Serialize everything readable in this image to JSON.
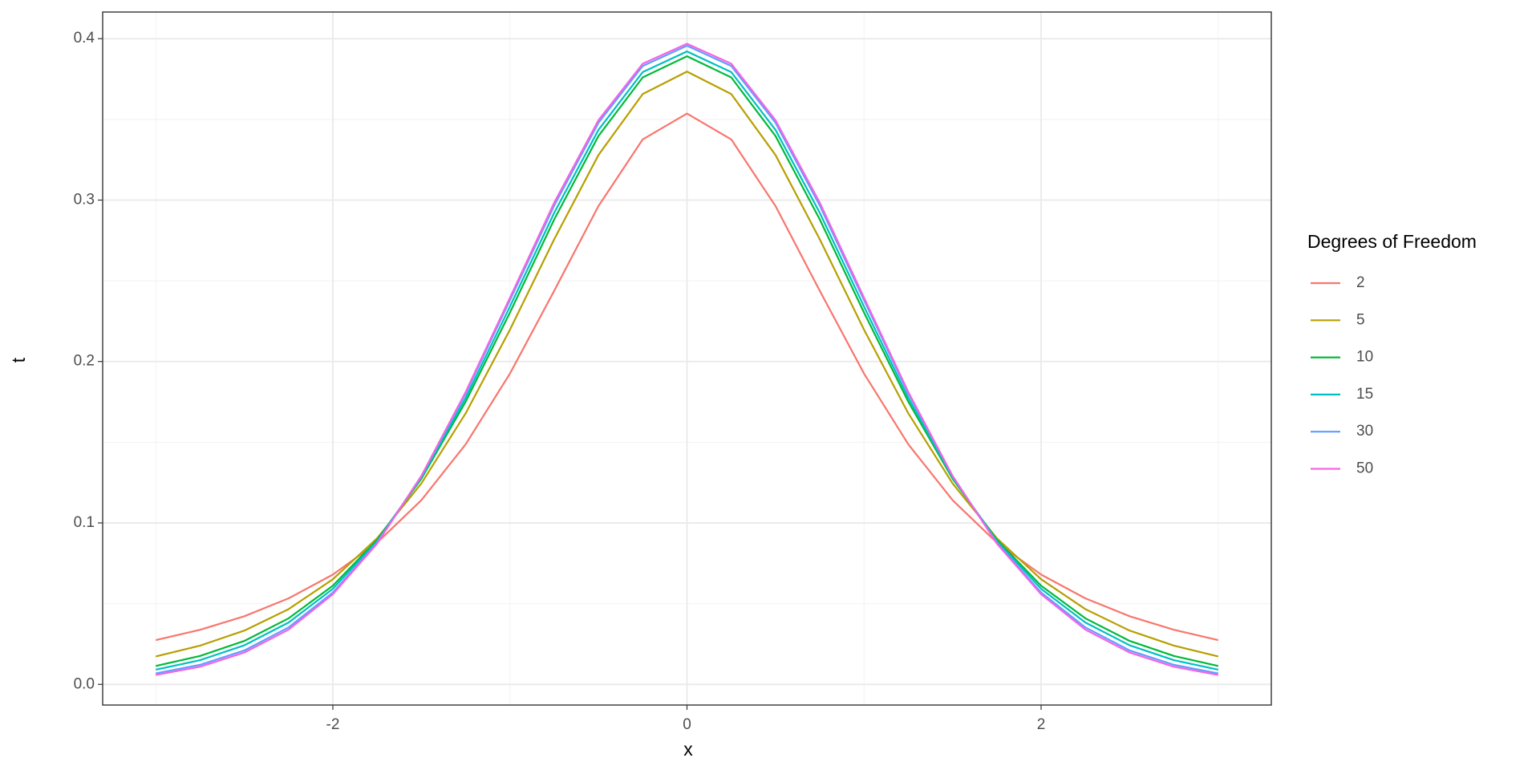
{
  "chart_data": {
    "type": "line",
    "x_label": "x",
    "y_label": "t",
    "legend_title": "Degrees of Freedom",
    "legend_position": "right",
    "grid": true,
    "x": [
      -3,
      -2.75,
      -2.5,
      -2.25,
      -2,
      -1.75,
      -1.5,
      -1.25,
      -1,
      -0.75,
      -0.5,
      -0.25,
      0,
      0.25,
      0.5,
      0.75,
      1,
      1.25,
      1.5,
      1.75,
      2,
      2.25,
      2.5,
      2.75,
      3
    ],
    "xlim": [
      -3.3,
      3.3
    ],
    "xticks": [
      -2,
      0,
      2
    ],
    "ylim": [
      -0.0128,
      0.4165
    ],
    "yticks": [
      {
        "value": 0,
        "label": "0.0"
      },
      0.1,
      0.2,
      0.3,
      0.4
    ],
    "series": [
      {
        "name": "2",
        "color": "#F8766D",
        "values": [
          0.0274,
          0.0338,
          0.0422,
          0.0533,
          0.068,
          0.0878,
          0.1141,
          0.1487,
          0.1925,
          0.2438,
          0.2963,
          0.3376,
          0.3536,
          0.3376,
          0.2963,
          0.2438,
          0.1925,
          0.1487,
          0.1141,
          0.0878,
          0.068,
          0.0533,
          0.0422,
          0.0338,
          0.0274
        ]
      },
      {
        "name": "5",
        "color": "#B79F00",
        "values": [
          0.0173,
          0.024,
          0.0333,
          0.0466,
          0.0651,
          0.0905,
          0.1245,
          0.1679,
          0.2197,
          0.2757,
          0.3279,
          0.3657,
          0.3796,
          0.3657,
          0.3279,
          0.2757,
          0.2197,
          0.1679,
          0.1245,
          0.0905,
          0.0651,
          0.0466,
          0.0333,
          0.024,
          0.0173
        ]
      },
      {
        "name": "10",
        "color": "#00BA38",
        "values": [
          0.0114,
          0.0176,
          0.0269,
          0.0409,
          0.0611,
          0.0895,
          0.1274,
          0.1751,
          0.2303,
          0.288,
          0.3397,
          0.376,
          0.3891,
          0.376,
          0.3397,
          0.288,
          0.2303,
          0.1751,
          0.1274,
          0.0895,
          0.0611,
          0.0409,
          0.0269,
          0.0176,
          0.0114
        ]
      },
      {
        "name": "15",
        "color": "#00BFC4",
        "values": [
          0.0091,
          0.015,
          0.0242,
          0.0383,
          0.0592,
          0.0887,
          0.1282,
          0.1775,
          0.234,
          0.2921,
          0.3435,
          0.3793,
          0.3921,
          0.3793,
          0.3435,
          0.2921,
          0.234,
          0.1775,
          0.1282,
          0.0887,
          0.0592,
          0.0383,
          0.0242,
          0.015,
          0.0091
        ]
      },
      {
        "name": "30",
        "color": "#619CFF",
        "values": [
          0.0068,
          0.0121,
          0.021,
          0.0353,
          0.0569,
          0.0877,
          0.129,
          0.1801,
          0.238,
          0.2966,
          0.3479,
          0.3831,
          0.3956,
          0.3831,
          0.3479,
          0.2966,
          0.238,
          0.1801,
          0.129,
          0.0877,
          0.0569,
          0.0353,
          0.021,
          0.0121,
          0.0068
        ]
      },
      {
        "name": "50",
        "color": "#F564E3",
        "values": [
          0.0058,
          0.0109,
          0.0197,
          0.0339,
          0.0558,
          0.0872,
          0.1292,
          0.1811,
          0.2395,
          0.2984,
          0.3495,
          0.3845,
          0.3969,
          0.3845,
          0.3495,
          0.2984,
          0.2395,
          0.1811,
          0.1292,
          0.0872,
          0.0558,
          0.0339,
          0.0197,
          0.0109,
          0.0058
        ]
      }
    ]
  }
}
